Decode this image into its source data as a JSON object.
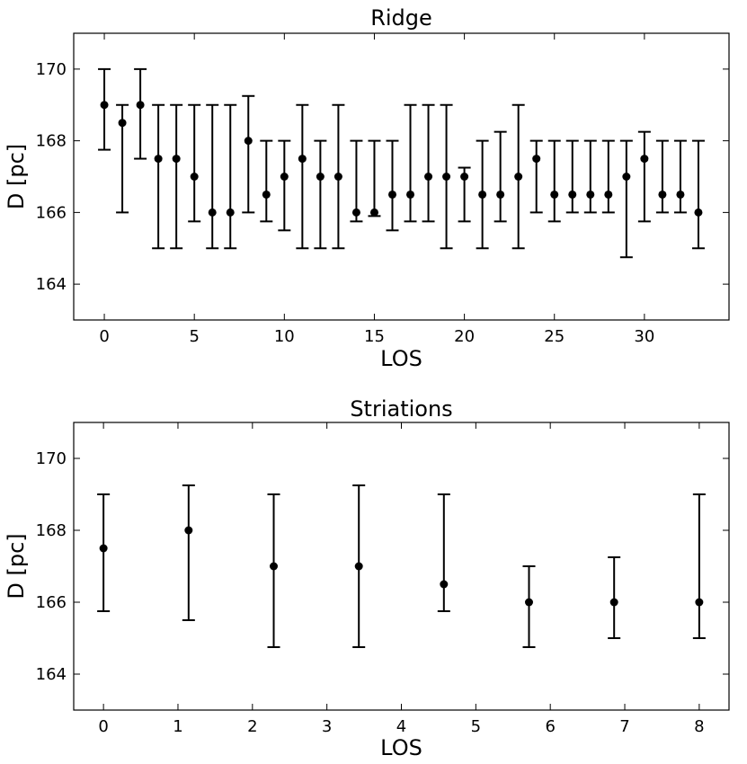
{
  "chart_data": [
    {
      "type": "scatter",
      "title": "Ridge",
      "xlabel": "LOS",
      "ylabel": "D [pc]",
      "xlim": [
        -1.7,
        34.7
      ],
      "ylim": [
        163,
        171
      ],
      "xticks": [
        0,
        5,
        10,
        15,
        20,
        25,
        30
      ],
      "yticks": [
        164,
        166,
        168,
        170
      ],
      "grid": false,
      "series": [
        {
          "x": [
            0,
            1,
            2,
            3,
            4,
            5,
            6,
            7,
            8,
            9,
            10,
            11,
            12,
            13,
            14,
            15,
            16,
            17,
            18,
            19,
            20,
            21,
            22,
            23,
            24,
            25,
            26,
            27,
            28,
            29,
            30,
            31,
            32,
            33
          ],
          "y": [
            169,
            168.5,
            169,
            167.5,
            167.5,
            167,
            166,
            166,
            168,
            166.5,
            167,
            167.5,
            167,
            167,
            166,
            166,
            166.5,
            166.5,
            167,
            167,
            167,
            166.5,
            166.5,
            167,
            167.5,
            166.5,
            166.5,
            166.5,
            166.5,
            167,
            167.5,
            166.5,
            166.5,
            166
          ],
          "err_low": [
            167.75,
            166,
            167.5,
            165,
            165,
            165.75,
            165,
            165,
            166,
            165.75,
            165.5,
            165,
            165,
            165,
            165.75,
            165.9,
            165.5,
            165.75,
            165.75,
            165,
            165.75,
            165,
            165.75,
            165,
            166,
            165.75,
            166,
            166,
            166,
            164.75,
            165.75,
            166,
            166,
            165
          ],
          "err_high": [
            170,
            169,
            170,
            169,
            169,
            169,
            169,
            169,
            169.25,
            168,
            168,
            169,
            168,
            169,
            168,
            168,
            168,
            169,
            169,
            169,
            167.25,
            168,
            168.25,
            169,
            168,
            168,
            168,
            168,
            168,
            168,
            168.25,
            168,
            168,
            168
          ]
        }
      ]
    },
    {
      "type": "scatter",
      "title": "Striations",
      "xlabel": "LOS",
      "ylabel": "D [pc]",
      "xlim": [
        -0.4,
        8.4
      ],
      "ylim": [
        163,
        171
      ],
      "xticks": [
        0,
        1,
        2,
        3,
        4,
        5,
        6,
        7,
        8
      ],
      "yticks": [
        164,
        166,
        168,
        170
      ],
      "grid": false,
      "series": [
        {
          "x": [
            0,
            1.143,
            2.286,
            3.429,
            4.571,
            5.714,
            6.857,
            8
          ],
          "y": [
            167.5,
            168,
            167,
            167,
            166.5,
            166,
            166,
            166
          ],
          "err_low": [
            165.75,
            165.5,
            164.75,
            164.75,
            165.75,
            164.75,
            165,
            165
          ],
          "err_high": [
            169,
            169.25,
            169,
            169.25,
            169,
            167,
            167.25,
            169
          ]
        }
      ]
    }
  ]
}
